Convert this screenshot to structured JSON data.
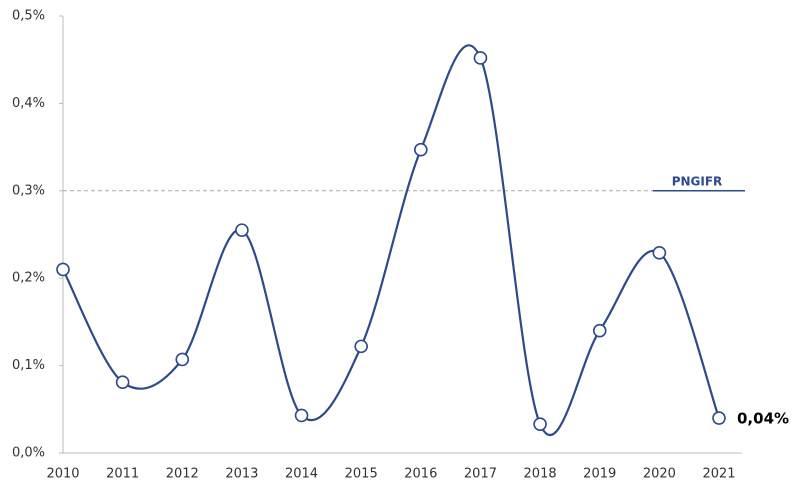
{
  "chart_data": {
    "type": "line",
    "categories": [
      "2010",
      "2011",
      "2012",
      "2013",
      "2014",
      "2015",
      "2016",
      "2017",
      "2018",
      "2019",
      "2020",
      "2021"
    ],
    "series": [
      {
        "color": "#2e4a8b",
        "values": [
          0.21,
          0.081,
          0.107,
          0.255,
          0.043,
          0.122,
          0.347,
          0.452,
          0.033,
          0.14,
          0.229,
          0.04
        ],
        "value_labels": [
          null,
          null,
          null,
          null,
          null,
          null,
          null,
          null,
          null,
          null,
          null,
          "0,04%"
        ]
      }
    ],
    "ylim": [
      0,
      0.5
    ],
    "yticks": [
      {
        "value": 0,
        "label": "0,0%"
      },
      {
        "value": 0.1,
        "label": "0,1%"
      },
      {
        "value": 0.2,
        "label": "0,2%"
      },
      {
        "value": 0.3,
        "label": "0,3%"
      },
      {
        "value": 0.4,
        "label": "0,4%"
      },
      {
        "value": 0.5,
        "label": "0,5%"
      }
    ],
    "reference_lines": [
      {
        "value": 0.3,
        "label": "PNGIFR"
      }
    ]
  }
}
